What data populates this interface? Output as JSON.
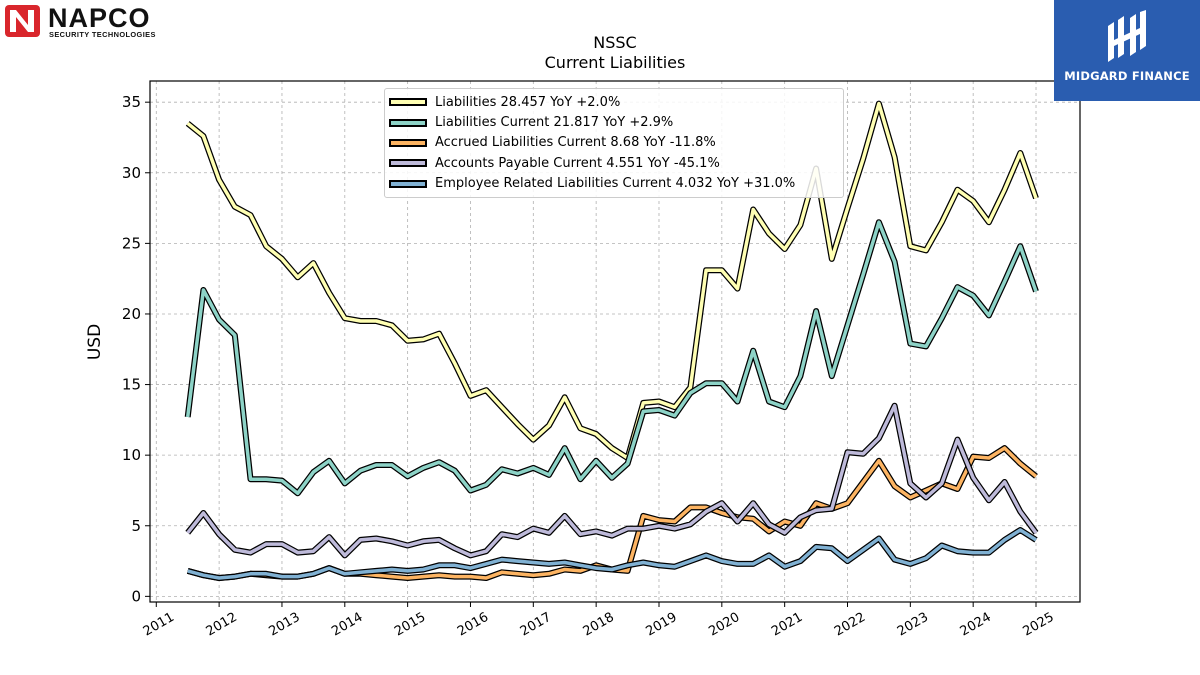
{
  "logos": {
    "left": {
      "name": "NAPCO",
      "sub": "SECURITY TECHNOLOGIES"
    },
    "right": {
      "name": "MIDGARD FINANCE"
    }
  },
  "header": {
    "title": "NSSC",
    "subtitle": "Current  Liabilities"
  },
  "chart_data": {
    "type": "line",
    "title": "NSSC",
    "subtitle": "Current  Liabilities",
    "xlabel": "",
    "ylabel": "USD",
    "xlim": [
      2010.9,
      2025.7
    ],
    "ylim": [
      -0.4,
      36.5
    ],
    "x_ticks": [
      "2011",
      "2012",
      "2013",
      "2014",
      "2015",
      "2016",
      "2017",
      "2018",
      "2019",
      "2020",
      "2021",
      "2022",
      "2023",
      "2024",
      "2025"
    ],
    "y_ticks": [
      0,
      5,
      10,
      15,
      20,
      25,
      30,
      35
    ],
    "grid": true,
    "legend_position": "top-center",
    "x": [
      2011.5,
      2011.75,
      2012.0,
      2012.25,
      2012.5,
      2012.75,
      2013.0,
      2013.25,
      2013.5,
      2013.75,
      2014.0,
      2014.25,
      2014.5,
      2014.75,
      2015.0,
      2015.25,
      2015.5,
      2015.75,
      2016.0,
      2016.25,
      2016.5,
      2016.75,
      2017.0,
      2017.25,
      2017.5,
      2017.75,
      2018.0,
      2018.25,
      2018.5,
      2018.75,
      2019.0,
      2019.25,
      2019.5,
      2019.75,
      2020.0,
      2020.25,
      2020.5,
      2020.75,
      2021.0,
      2021.25,
      2021.5,
      2021.75,
      2022.0,
      2022.25,
      2022.5,
      2022.75,
      2023.0,
      2023.25,
      2023.5,
      2023.75,
      2024.0,
      2024.25,
      2024.5,
      2024.75,
      2025.0
    ],
    "series": [
      {
        "name": "Liabilities",
        "legend": "Liabilities  28.457 YoY +2.0%",
        "color": "#ffffb3",
        "values": [
          33.5,
          32.6,
          29.5,
          27.6,
          27.0,
          24.8,
          23.9,
          22.6,
          23.6,
          21.5,
          19.7,
          19.5,
          19.5,
          19.2,
          18.1,
          18.2,
          18.6,
          16.5,
          14.2,
          14.6,
          13.4,
          12.2,
          11.1,
          12.1,
          14.1,
          11.9,
          11.5,
          10.5,
          9.8,
          13.7,
          13.8,
          13.4,
          14.8,
          23.1,
          23.1,
          21.8,
          27.4,
          25.7,
          24.6,
          26.3,
          30.3,
          23.9,
          27.5,
          31.0,
          34.9,
          31.1,
          24.8,
          24.5,
          26.5,
          28.8,
          28.0,
          26.5,
          28.8,
          31.4,
          28.2
        ]
      },
      {
        "name": "Liabilities Current",
        "legend": "Liabilities Current  21.817 YoY +2.9%",
        "color": "#8dd3c7",
        "values": [
          12.7,
          21.7,
          19.6,
          18.5,
          8.3,
          8.3,
          8.2,
          7.3,
          8.8,
          9.6,
          8.0,
          8.9,
          9.3,
          9.3,
          8.5,
          9.1,
          9.5,
          8.9,
          7.5,
          7.9,
          9.0,
          8.7,
          9.1,
          8.6,
          10.5,
          8.3,
          9.6,
          8.4,
          9.4,
          13.1,
          13.2,
          12.8,
          14.4,
          15.1,
          15.1,
          13.8,
          17.4,
          13.8,
          13.4,
          15.6,
          20.2,
          15.6,
          19.2,
          22.8,
          26.5,
          23.7,
          17.9,
          17.7,
          19.7,
          21.9,
          21.3,
          19.9,
          22.3,
          24.8,
          21.6
        ]
      },
      {
        "name": "Accrued Liabilities Current",
        "legend": "Accrued Liabilities Current  8.68 YoY -11.8%",
        "color": "#fdb462",
        "values": [
          1.8,
          1.5,
          1.3,
          1.4,
          1.6,
          1.5,
          1.4,
          1.4,
          1.6,
          2.0,
          1.6,
          1.6,
          1.5,
          1.4,
          1.3,
          1.4,
          1.5,
          1.4,
          1.4,
          1.3,
          1.7,
          1.6,
          1.5,
          1.6,
          1.9,
          1.8,
          2.2,
          1.9,
          1.8,
          5.7,
          5.4,
          5.3,
          6.3,
          6.3,
          5.9,
          5.6,
          5.5,
          4.6,
          5.3,
          5.0,
          6.6,
          6.2,
          6.6,
          8.1,
          9.6,
          7.8,
          7.0,
          7.5,
          8.0,
          7.6,
          9.9,
          9.8,
          10.5,
          9.4,
          8.5
        ]
      },
      {
        "name": "Accounts Payable Current",
        "legend": "Accounts Payable Current  4.551 YoY -45.1%",
        "color": "#bebada",
        "values": [
          4.5,
          5.9,
          4.4,
          3.3,
          3.1,
          3.7,
          3.7,
          3.1,
          3.2,
          4.2,
          2.9,
          4.0,
          4.1,
          3.9,
          3.6,
          3.9,
          4.0,
          3.4,
          2.9,
          3.2,
          4.4,
          4.2,
          4.8,
          4.5,
          5.7,
          4.4,
          4.6,
          4.3,
          4.8,
          4.8,
          5.0,
          4.8,
          5.1,
          6.0,
          6.6,
          5.3,
          6.6,
          5.1,
          4.5,
          5.6,
          6.1,
          6.2,
          10.2,
          10.1,
          11.2,
          13.5,
          8.0,
          7.0,
          8.0,
          11.1,
          8.4,
          6.8,
          8.1,
          6.0,
          4.5
        ]
      },
      {
        "name": "Employee Related Liabilities Current",
        "legend": "Employee Related Liabilities Current  4.032 YoY +31.0%",
        "color": "#80b1d3",
        "values": [
          1.8,
          1.5,
          1.3,
          1.4,
          1.6,
          1.6,
          1.4,
          1.4,
          1.6,
          2.0,
          1.6,
          1.7,
          1.8,
          1.9,
          1.8,
          1.9,
          2.2,
          2.2,
          2.0,
          2.3,
          2.6,
          2.5,
          2.4,
          2.3,
          2.4,
          2.2,
          2.0,
          1.9,
          2.2,
          2.4,
          2.2,
          2.1,
          2.5,
          2.9,
          2.5,
          2.3,
          2.3,
          2.9,
          2.1,
          2.5,
          3.5,
          3.4,
          2.5,
          3.3,
          4.1,
          2.6,
          2.3,
          2.7,
          3.6,
          3.2,
          3.1,
          3.1,
          4.0,
          4.7,
          4.0
        ]
      }
    ]
  }
}
